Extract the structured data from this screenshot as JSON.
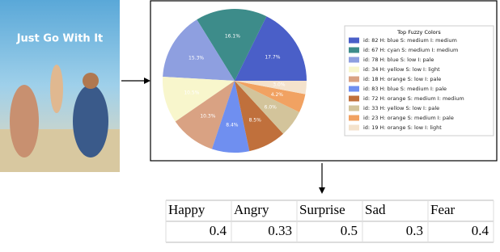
{
  "poster": {
    "title": "Just Go With It"
  },
  "chart_data": {
    "type": "pie",
    "legend_title": "Top Fuzzy Colors",
    "categories": [
      "id: 82 H: blue S: medium I: medium",
      "id: 67 H: cyan S: medium I: medium",
      "id: 78 H: blue S: low I: pale",
      "id: 34 H: yellow S: low I: light",
      "id: 18 H: orange S: low I: pale",
      "id: 83 H: blue S: medium I: pale",
      "id: 72 H: orange S: medium I: medium",
      "id: 33 H: yellow S: low I: pale",
      "id: 23 H: orange S: medium I: pale",
      "id: 19 H: orange S: low I: light"
    ],
    "values": [
      17.7,
      16.1,
      15.3,
      10.5,
      10.3,
      8.4,
      8.5,
      6.0,
      4.2,
      3.0
    ],
    "value_labels": [
      "17.7%",
      "16.1%",
      "15.3%",
      "10.5%",
      "10.3%",
      "8.4%",
      "8.5%",
      "6.0%",
      "4.2%",
      "3.0%"
    ],
    "colors": [
      "#4a5fc8",
      "#3d8c8a",
      "#8e9fe0",
      "#f8f6cc",
      "#d9a283",
      "#6f8ff0",
      "#c0703c",
      "#d3c49b",
      "#f1a262",
      "#f4e2cc"
    ]
  },
  "table": {
    "header": [
      "Happy",
      "Angry",
      "Surprise",
      "Sad",
      "Fear"
    ],
    "rows": [
      [
        0.4,
        0.33,
        0.5,
        0.3,
        0.4
      ]
    ]
  }
}
